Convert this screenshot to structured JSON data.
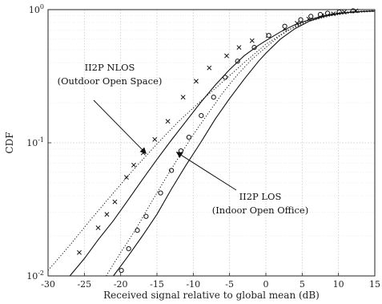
{
  "chart_data": {
    "type": "line",
    "title": "",
    "xlabel": "Received signal relative to global mean (dB)",
    "ylabel": "CDF",
    "xlim": [
      -30,
      15
    ],
    "ylim": [
      0.01,
      1
    ],
    "yscale": "log",
    "grid": true,
    "x_ticks": [
      "-30",
      "-25",
      "-20",
      "-15",
      "-10",
      "-5",
      "0",
      "5",
      "10",
      "15"
    ],
    "y_ticks": [
      {
        "base": "10",
        "exp": "-2"
      },
      {
        "base": "10",
        "exp": "-1"
      },
      {
        "base": "10",
        "exp": "0"
      }
    ],
    "series": [
      {
        "style": "measured",
        "marker": "x",
        "x": [
          -25.7,
          -23.1,
          -21.9,
          -20.8,
          -19.2,
          -18.2,
          -16.9,
          -15.3,
          -13.5,
          -11.4,
          -9.6,
          -7.8,
          -5.4,
          -3.7,
          -1.9,
          0.3,
          2.6,
          4.3,
          5.9,
          7.7,
          9.3,
          10.8,
          12.4
        ],
        "y": [
          0.015,
          0.023,
          0.029,
          0.036,
          0.055,
          0.068,
          0.084,
          0.106,
          0.145,
          0.22,
          0.29,
          0.365,
          0.45,
          0.52,
          0.585,
          0.64,
          0.72,
          0.79,
          0.85,
          0.9,
          0.93,
          0.96,
          0.98
        ]
      },
      {
        "style": "measured",
        "marker": "o",
        "x": [
          -19.9,
          -18.9,
          -17.7,
          -16.5,
          -14.5,
          -13,
          -11.7,
          -10.6,
          -8.9,
          -7.2,
          -5.6,
          -3.9,
          -1.6,
          0.4,
          2.6,
          4.8,
          6.2,
          7.5,
          8.5,
          10.1,
          12
        ],
        "y": [
          0.011,
          0.016,
          0.022,
          0.028,
          0.042,
          0.062,
          0.087,
          0.11,
          0.16,
          0.22,
          0.31,
          0.41,
          0.52,
          0.64,
          0.75,
          0.84,
          0.89,
          0.92,
          0.94,
          0.96,
          0.98
        ]
      },
      {
        "style": "model-solid",
        "x": [
          -27,
          -25,
          -23,
          -21,
          -19,
          -17,
          -15,
          -13,
          -11,
          -9,
          -7,
          -5,
          -3,
          -1,
          0,
          2,
          4,
          6,
          8,
          10,
          12,
          15
        ],
        "y": [
          0.01,
          0.0135,
          0.019,
          0.026,
          0.037,
          0.053,
          0.075,
          0.105,
          0.145,
          0.2,
          0.27,
          0.355,
          0.45,
          0.54,
          0.585,
          0.68,
          0.77,
          0.84,
          0.9,
          0.94,
          0.96,
          0.975
        ]
      },
      {
        "style": "model-dotted",
        "x": [
          -30,
          -27,
          -24,
          -21,
          -18,
          -15,
          -12,
          -9,
          -6,
          -3,
          0,
          3,
          6,
          9,
          12,
          15
        ],
        "y": [
          0.011,
          0.017,
          0.027,
          0.042,
          0.065,
          0.098,
          0.145,
          0.205,
          0.285,
          0.4,
          0.55,
          0.7,
          0.82,
          0.9,
          0.95,
          0.97
        ]
      },
      {
        "style": "model-solid",
        "x": [
          -21,
          -19,
          -17,
          -15,
          -13,
          -11,
          -9,
          -7,
          -5,
          -3,
          -1,
          0,
          2,
          4,
          6,
          8,
          10,
          12,
          15
        ],
        "y": [
          0.01,
          0.014,
          0.02,
          0.029,
          0.045,
          0.068,
          0.1,
          0.15,
          0.215,
          0.3,
          0.41,
          0.47,
          0.6,
          0.72,
          0.82,
          0.89,
          0.93,
          0.96,
          0.98
        ]
      },
      {
        "style": "model-dotted",
        "x": [
          -22,
          -20,
          -18,
          -16,
          -14,
          -12,
          -10,
          -8,
          -6,
          -4,
          -2,
          0,
          2,
          4,
          6,
          8,
          10,
          12,
          15
        ],
        "y": [
          0.01,
          0.015,
          0.022,
          0.034,
          0.052,
          0.078,
          0.115,
          0.165,
          0.235,
          0.32,
          0.42,
          0.52,
          0.64,
          0.75,
          0.84,
          0.91,
          0.95,
          0.97,
          0.985
        ]
      }
    ],
    "annotations": [
      {
        "lines": [
          "II2P NLOS",
          "(Outdoor Open Space)"
        ],
        "arrow_to": [
          -16.5,
          0.083
        ]
      },
      {
        "lines": [
          "II2P LOS",
          "(Indoor Open Office)"
        ],
        "arrow_to": [
          -12.3,
          0.085
        ]
      }
    ],
    "colors": {
      "line": "#111111",
      "grid": "#c8c8c8",
      "axis": "#222222"
    }
  }
}
